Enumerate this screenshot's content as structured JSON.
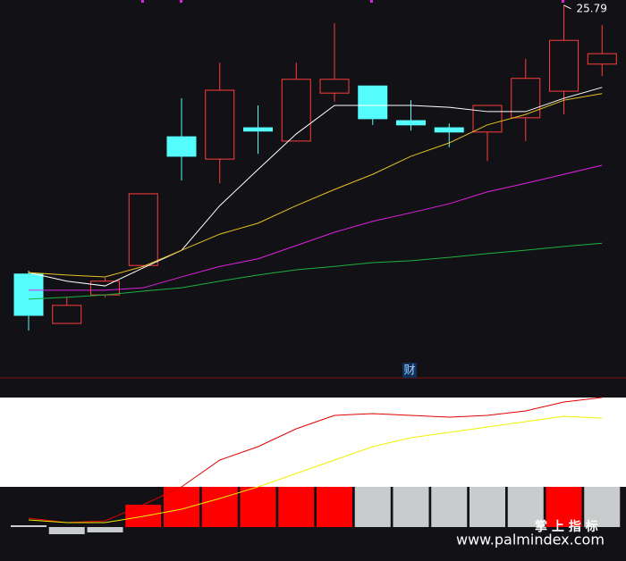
{
  "chart_data": [
    {
      "type": "candlestick",
      "categories": [
        null,
        null,
        null,
        null,
        null,
        null,
        null,
        null,
        null,
        null,
        null,
        null,
        null,
        null,
        null,
        null
      ],
      "open": [
        20.13,
        19.09,
        19.69,
        20.31,
        23.02,
        22.55,
        23.21,
        22.93,
        23.94,
        24.09,
        23.36,
        23.21,
        23.12,
        23.42,
        23.98,
        24.55
      ],
      "high": [
        20.2,
        19.64,
        20.05,
        21.82,
        23.83,
        24.58,
        23.68,
        24.58,
        25.41,
        24.09,
        23.79,
        23.3,
        23.68,
        24.66,
        25.79,
        25.37
      ],
      "low": [
        18.94,
        19.09,
        19.64,
        20.31,
        22.1,
        22.04,
        22.66,
        22.93,
        23.76,
        23.27,
        23.15,
        22.8,
        22.51,
        22.93,
        23.49,
        24.3
      ],
      "close": [
        19.26,
        19.47,
        19.98,
        21.82,
        22.61,
        24.0,
        23.14,
        24.23,
        24.23,
        23.4,
        23.27,
        23.12,
        23.68,
        24.25,
        25.05,
        24.77
      ],
      "up_color": "#ff3c3c",
      "down_color": "#54fcfc",
      "ylim": [
        18.0,
        25.9
      ],
      "series": [
        {
          "color": "#ffffff",
          "values": [
            20.16,
            19.98,
            19.88,
            20.26,
            20.63,
            21.57,
            22.33,
            23.08,
            23.68,
            23.68,
            23.68,
            23.64,
            23.55,
            23.55,
            23.83,
            24.06
          ]
        },
        {
          "color": "#e8c020",
          "values": [
            20.16,
            20.11,
            20.07,
            20.29,
            20.63,
            20.97,
            21.2,
            21.57,
            21.91,
            22.23,
            22.61,
            22.89,
            23.27,
            23.49,
            23.79,
            23.93
          ]
        },
        {
          "color": "#e020e0",
          "values": [
            19.79,
            19.79,
            19.79,
            19.84,
            20.07,
            20.29,
            20.45,
            20.73,
            21.01,
            21.24,
            21.42,
            21.61,
            21.86,
            22.04,
            22.23,
            22.42
          ]
        },
        {
          "color": "#20b040",
          "values": [
            19.6,
            19.64,
            19.69,
            19.77,
            19.84,
            19.98,
            20.11,
            20.22,
            20.29,
            20.37,
            20.41,
            20.48,
            20.56,
            20.63,
            20.71,
            20.78
          ]
        }
      ],
      "badge": "财"
    },
    {
      "type": "bar",
      "categories": [
        null,
        null,
        null,
        null,
        null,
        null,
        null,
        null,
        null,
        null,
        null,
        null,
        null,
        null,
        null,
        null
      ],
      "values": [
        2,
        -8,
        -6,
        25,
        45,
        45,
        45,
        45,
        45,
        45,
        45,
        45,
        45,
        45,
        45,
        45
      ],
      "colors": [
        "#c8cccc",
        "#c8cccc",
        "#c8cccc",
        "#ff0000",
        "#ff0000",
        "#ff0000",
        "#ff0000",
        "#ff0000",
        "#ff0000",
        "#c8cccc",
        "#c8cccc",
        "#c8cccc",
        "#c8cccc",
        "#c8cccc",
        "#ff0000",
        "#c8cccc"
      ],
      "ylim": [
        -10,
        150
      ],
      "series": [
        {
          "color": "#e00000",
          "values": [
            10,
            5,
            7,
            25,
            45,
            75,
            90,
            110,
            125,
            127,
            125,
            123,
            125,
            130,
            140,
            145
          ]
        },
        {
          "color": "#f0f000",
          "values": [
            8,
            5,
            5,
            12,
            20,
            32,
            45,
            60,
            75,
            90,
            100,
            106,
            112,
            118,
            124,
            122
          ]
        }
      ]
    }
  ],
  "watermark": {
    "title": "掌 上 指 标",
    "url": "www.palmindex.com"
  }
}
